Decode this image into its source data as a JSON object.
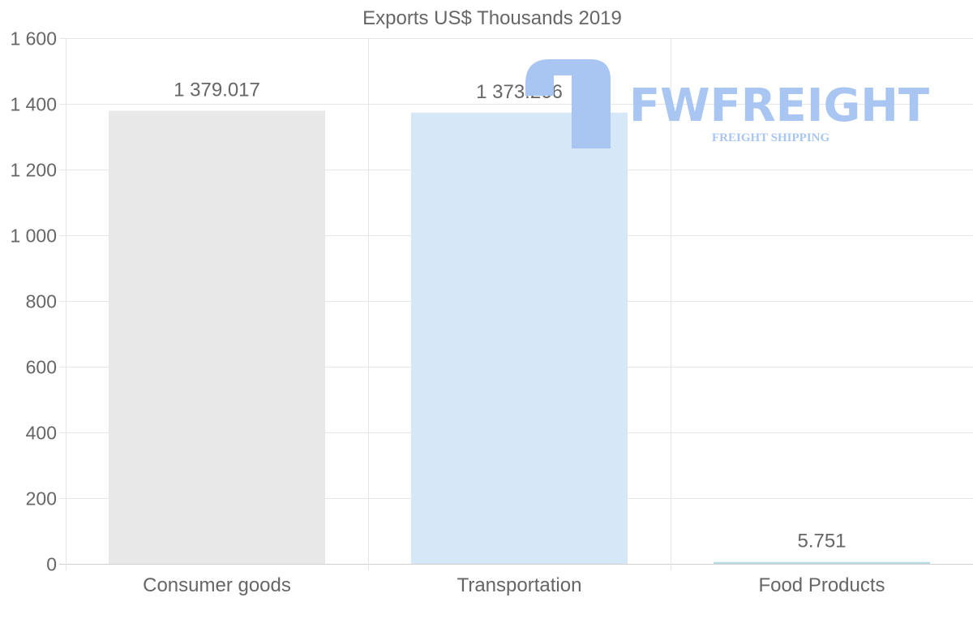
{
  "chart_data": {
    "type": "bar",
    "title": "Exports US$ Thousands 2019",
    "xlabel": "",
    "ylabel": "",
    "categories": [
      "Consumer goods",
      "Transportation",
      "Food Products"
    ],
    "values": [
      1379.017,
      1373.266,
      5.751
    ],
    "value_labels": [
      "1 379.017",
      "1 373.266",
      "5.751"
    ],
    "colors": [
      "#e8e8e8",
      "#d6e7f8",
      "#b9dbe3"
    ],
    "ylim": [
      0,
      1600
    ],
    "yticks": [
      0,
      200,
      400,
      600,
      800,
      1000,
      1200,
      1400,
      1600
    ],
    "ytick_labels": [
      "0",
      "200",
      "400",
      "600",
      "800",
      "1 000",
      "1 200",
      "1 400",
      "1 600"
    ],
    "grid": true,
    "legend": "none"
  },
  "watermark": {
    "brand": "FWFREIGHT",
    "tagline": "FREIGHT SHIPPING",
    "color": "#a9c6f2"
  }
}
